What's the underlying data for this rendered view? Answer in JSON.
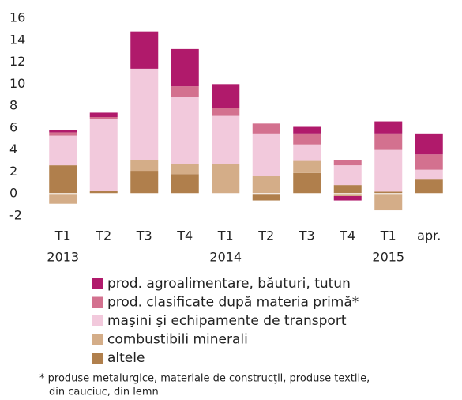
{
  "chart_data": {
    "type": "stacked_bar",
    "categories": [
      "T1",
      "T2",
      "T3",
      "T4",
      "T1",
      "T2",
      "T3",
      "T4",
      "T1",
      "apr."
    ],
    "years": [
      "2013",
      null,
      null,
      null,
      "2014",
      null,
      null,
      null,
      "2015",
      null
    ],
    "series": [
      {
        "name": "altele",
        "color": "#b07f4c",
        "values": [
          2.6,
          0.3,
          2.1,
          1.8,
          0,
          -0.6,
          1.9,
          0.8,
          0.2,
          1.3
        ]
      },
      {
        "name": "combustibili minerali",
        "color": "#d4ad88",
        "values": [
          -0.9,
          0,
          1.0,
          0.9,
          2.7,
          1.6,
          1.1,
          -0.2,
          -1.5,
          0
        ]
      },
      {
        "name": "maşini şi echipamente de transport",
        "color": "#f2c9dc",
        "values": [
          2.7,
          6.5,
          8.3,
          6.1,
          4.4,
          3.9,
          1.5,
          1.8,
          3.8,
          0.9
        ]
      },
      {
        "name": "prod. clasificate după materia primă*",
        "color": "#d3718f",
        "values": [
          0.3,
          0.2,
          0,
          1.0,
          0.7,
          0.9,
          1.0,
          0.5,
          1.5,
          1.4
        ]
      },
      {
        "name": "prod. agroalimentare, băuturi, tutun",
        "color": "#b01a6b",
        "values": [
          0.2,
          0.4,
          3.4,
          3.4,
          2.2,
          0,
          0.6,
          -0.4,
          1.1,
          1.9
        ]
      }
    ],
    "ylim": [
      -2,
      16
    ],
    "yticks": [
      -2,
      0,
      2,
      4,
      6,
      8,
      10,
      12,
      14,
      16
    ],
    "footnote": [
      "* produse metalurgice, materiale de construcţii, produse textile,",
      "din cauciuc, din lemn"
    ]
  }
}
